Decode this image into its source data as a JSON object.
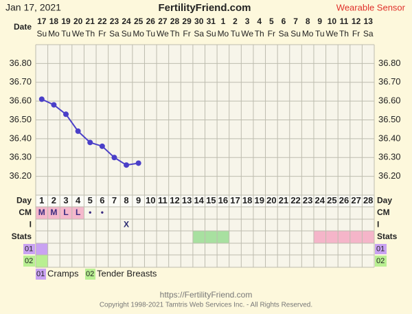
{
  "header": {
    "date": "Jan 17, 2021",
    "site": "FertilityFriend.com",
    "source": "Wearable Sensor"
  },
  "date_label": "Date",
  "dates": [
    17,
    18,
    19,
    20,
    21,
    22,
    23,
    24,
    25,
    26,
    27,
    28,
    29,
    30,
    31,
    1,
    2,
    3,
    4,
    5,
    6,
    7,
    8,
    9,
    10,
    11,
    12,
    13
  ],
  "weekdays": [
    "Su",
    "Mo",
    "Tu",
    "We",
    "Th",
    "Fr",
    "Sa",
    "Su",
    "Mo",
    "Tu",
    "We",
    "Th",
    "Fr",
    "Sa",
    "Su",
    "Mo",
    "Tu",
    "We",
    "Th",
    "Fr",
    "Sa",
    "Su",
    "Mo",
    "Tu",
    "We",
    "Th",
    "Fr",
    "Sa"
  ],
  "row_labels": {
    "day": "Day",
    "cm": "CM",
    "intercourse": "I",
    "stats": "Stats"
  },
  "chart_data": {
    "type": "line",
    "categories": [
      1,
      2,
      3,
      4,
      5,
      6,
      7,
      8,
      9,
      10,
      11,
      12,
      13,
      14,
      15,
      16,
      17,
      18,
      19,
      20,
      21,
      22,
      23,
      24,
      25,
      26,
      27,
      28
    ],
    "series": [
      {
        "color": "#4a3fc8",
        "values": [
          36.61,
          36.58,
          36.53,
          36.44,
          36.38,
          36.36,
          36.3,
          36.26,
          36.27,
          null,
          null,
          null,
          null,
          null,
          null,
          null,
          null,
          null,
          null,
          null,
          null,
          null,
          null,
          null,
          null,
          null,
          null,
          null
        ]
      }
    ],
    "ylim": [
      36.1,
      36.9
    ],
    "yticks": [
      {
        "value": 36.2,
        "label": "36.20"
      },
      {
        "value": 36.3,
        "label": "36.30"
      },
      {
        "value": 36.4,
        "label": "36.40"
      },
      {
        "value": 36.5,
        "label": "36.50"
      },
      {
        "value": 36.6,
        "label": "36.60"
      },
      {
        "value": 36.7,
        "label": "36.70"
      },
      {
        "value": 36.8,
        "label": "36.80"
      }
    ],
    "grid": true
  },
  "cm": [
    "M",
    "M",
    "L",
    "L",
    "•",
    "•",
    null,
    null,
    null,
    null,
    null,
    null,
    null,
    null,
    null,
    null,
    null,
    null,
    null,
    null,
    null,
    null,
    null,
    null,
    null,
    null,
    null,
    null
  ],
  "intercourse": [
    null,
    null,
    null,
    null,
    null,
    null,
    null,
    "X",
    null,
    null,
    null,
    null,
    null,
    null,
    null,
    null,
    null,
    null,
    null,
    null,
    null,
    null,
    null,
    null,
    null,
    null,
    null,
    null
  ],
  "legend": [
    {
      "code": "01",
      "label": "Cramps",
      "color": "#c9a2f2"
    },
    {
      "code": "02",
      "label": "Tender Breasts",
      "color": "#b9ef92"
    }
  ],
  "footer": {
    "url": "https://FertilityFriend.com",
    "copyright": "Copyright 1998-2021 Tamtris Web Services Inc. - All Rights Reserved."
  }
}
